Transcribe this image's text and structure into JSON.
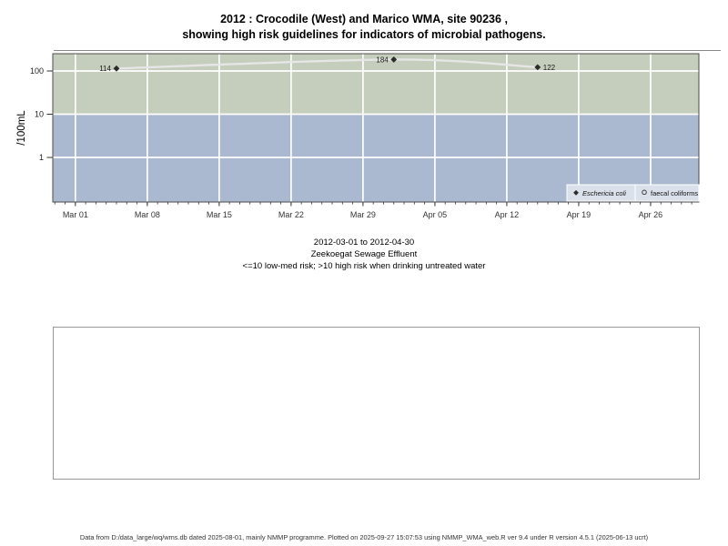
{
  "title": {
    "line1": "2012 : Crocodile (West) and Marico WMA, site 90236 ,",
    "line2": "showing high risk guidelines for indicators of microbial pathogens."
  },
  "chart_data": {
    "type": "scatter",
    "ylabel": "/100mL",
    "y_scale": "log10",
    "y_ticks": [
      1,
      10,
      100
    ],
    "y_domain": [
      0.09,
      250
    ],
    "x_start_date": "2012-03-01",
    "x_tick_labels": [
      "Mar 01",
      "Mar 08",
      "Mar 15",
      "Mar 22",
      "Mar 29",
      "Apr 05",
      "Apr 12",
      "Apr 19",
      "Apr 26"
    ],
    "x_tick_days": [
      0,
      7,
      14,
      21,
      28,
      35,
      42,
      49,
      56
    ],
    "x_domain_days": [
      -2.2,
      60.7
    ],
    "minor_tick_every_days": 1,
    "risk_threshold": 10,
    "bands": [
      {
        "range": "above 10",
        "meaning": "high risk",
        "color": "#c5cdbc"
      },
      {
        "range": "10 and below",
        "meaning": "low-med risk",
        "color": "#aab8d0"
      }
    ],
    "series": [
      {
        "name": "Eschericia coli",
        "marker": "filled-diamond",
        "color": "#2b2b2b",
        "points": [
          {
            "date": "2012-03-05",
            "day": 4,
            "value": 114,
            "label": "114",
            "label_side": "left"
          },
          {
            "date": "2012-04-01",
            "day": 31,
            "value": 184,
            "label": "184",
            "label_side": "left"
          },
          {
            "date": "2012-04-15",
            "day": 45,
            "value": 122,
            "label": "122",
            "label_side": "right"
          }
        ]
      },
      {
        "name": "faecal coliforms",
        "marker": "open-circle",
        "color": "#2b2b2b",
        "points": []
      }
    ],
    "smooth_line": {
      "color": "#e6e6e6",
      "width": 2.4
    },
    "legend": {
      "position": "bottom-right-inside",
      "bg": "#dbe1eb",
      "border": "#ffffff",
      "items": [
        {
          "label": "Eschericia coli",
          "marker": "filled-diamond",
          "italic": true
        },
        {
          "label": "faecal coliforms",
          "marker": "open-circle",
          "italic": false
        }
      ]
    }
  },
  "captions": {
    "date_range": "2012-03-01 to 2012-04-30",
    "site": "Zeekoegat Sewage Effluent",
    "risk_note": "<=10 low-med risk; >10 high risk when drinking untreated water"
  },
  "footer": {
    "text": "Data from D:/data_large/wq/wms.db dated 2025-08-01, mainly NMMP programme. Plotted on 2025-09-27 15:07:53 using NMMP_WMA_web.R ver 9.4 under R version 4.5.1 (2025-06-13 ucrt)"
  },
  "colors": {
    "grid": "#ffffff",
    "axis": "#333333",
    "panel_border": "#4d4d4d",
    "separator": "#898989",
    "empty_box_border": "#999999",
    "point_label": "#1a1a1a"
  }
}
